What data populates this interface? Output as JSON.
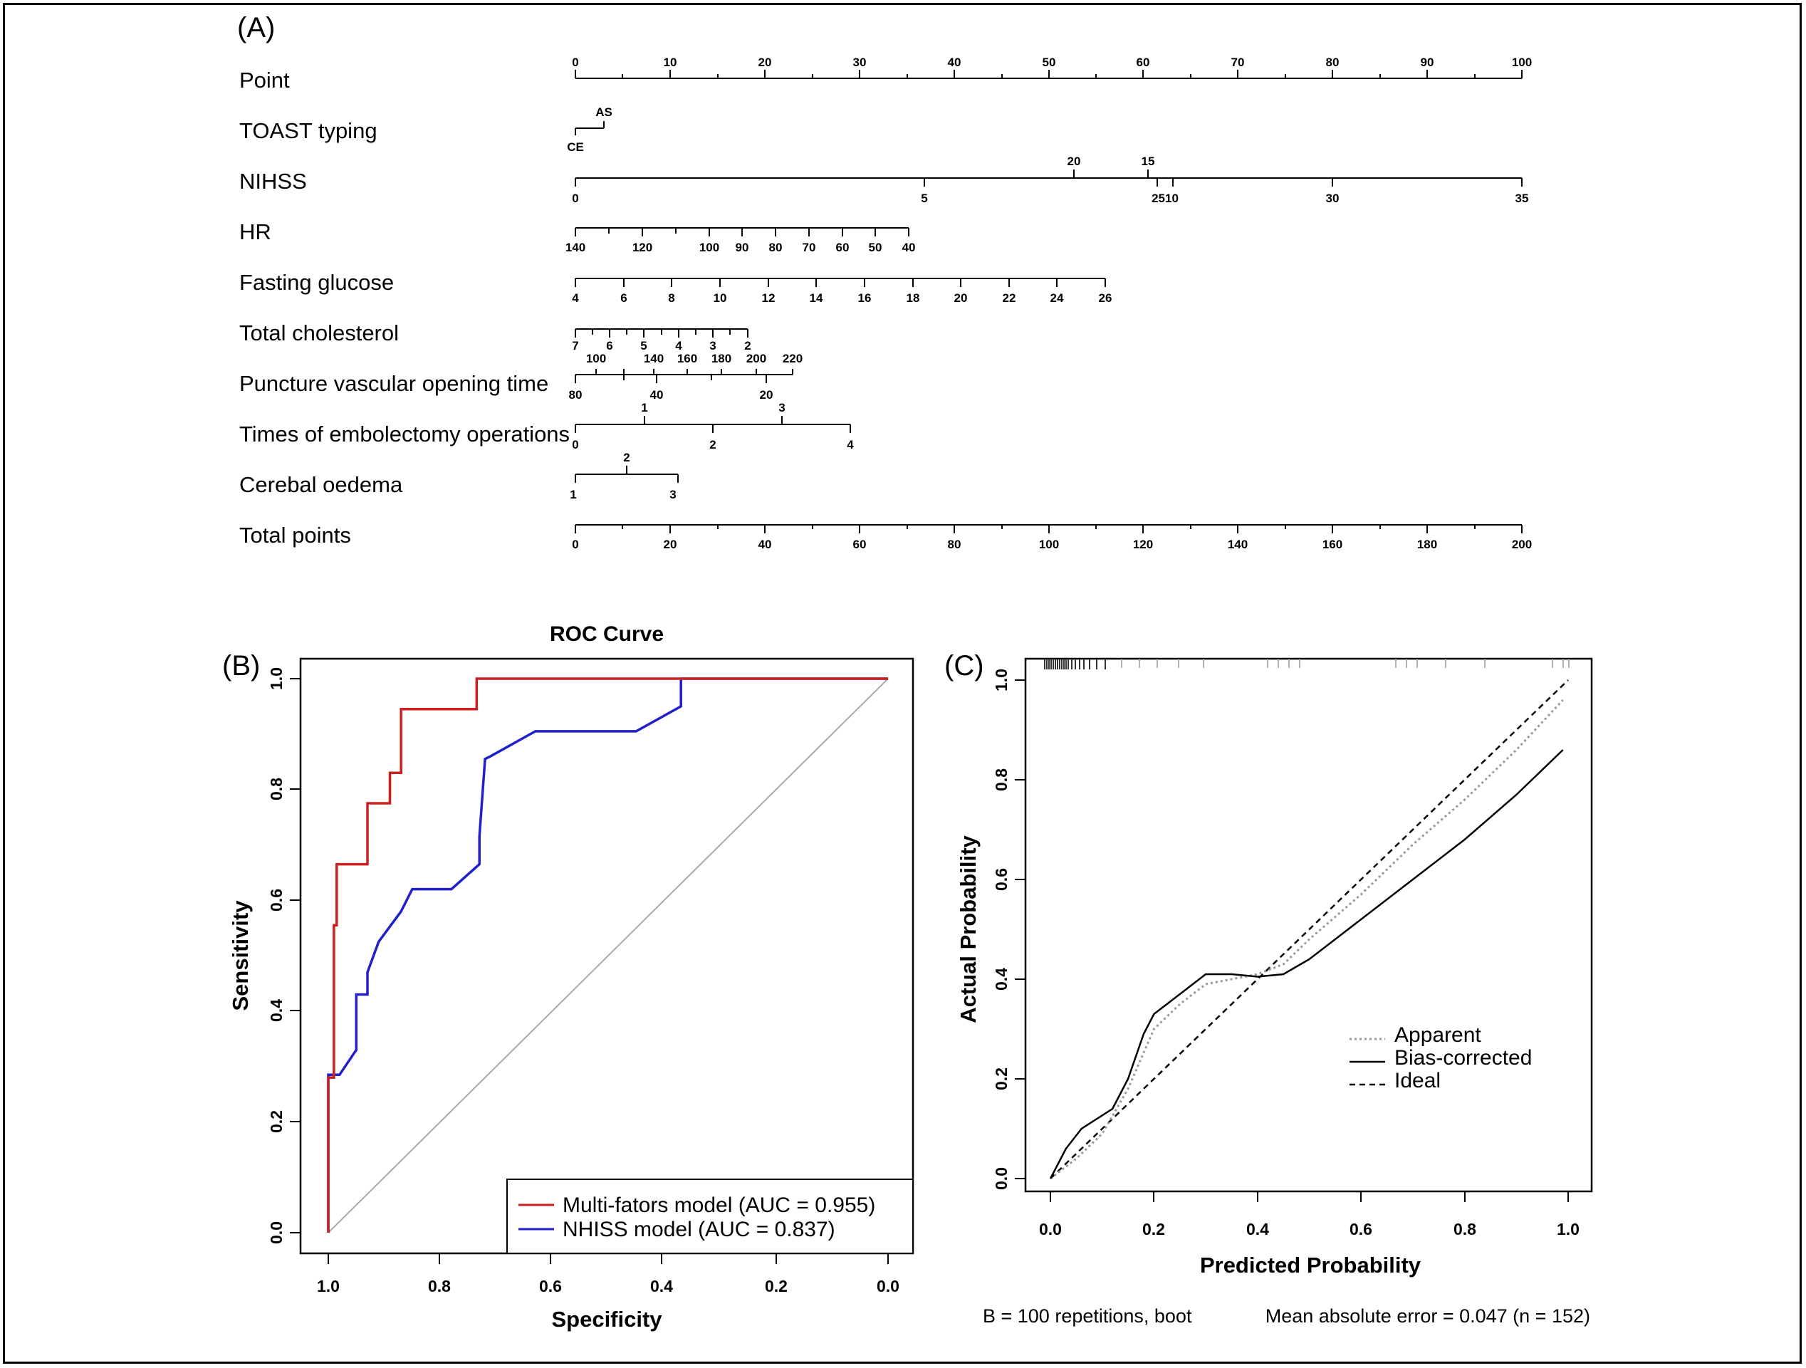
{
  "panel_a": {
    "letter": "(A)",
    "rows": [
      {
        "label": "Point",
        "ticks_above": [
          "0",
          "10",
          "20",
          "30",
          "40",
          "50",
          "60",
          "70",
          "80",
          "90",
          "100"
        ]
      },
      {
        "label": "TOAST typing",
        "ticks": [
          "AS",
          "CE"
        ]
      },
      {
        "label": "NIHSS",
        "ticks": [
          "20",
          "15",
          "0",
          "5",
          "2510",
          "30",
          "35"
        ]
      },
      {
        "label": "HR",
        "ticks": [
          "140",
          "120",
          "100",
          "90",
          "80",
          "70",
          "60",
          "50",
          "40"
        ]
      },
      {
        "label": "Fasting glucose",
        "ticks": [
          "4",
          "6",
          "8",
          "10",
          "12",
          "14",
          "16",
          "18",
          "20",
          "22",
          "24",
          "26"
        ]
      },
      {
        "label": "Total cholesterol",
        "ticks": [
          "7",
          "6",
          "5",
          "4",
          "3",
          "2"
        ]
      },
      {
        "label": "Puncture vascular opening time",
        "ticks": [
          "100",
          "140",
          "160",
          "180",
          "200",
          "220",
          "80",
          "40",
          "20"
        ]
      },
      {
        "label": "Times of embolectomy operations",
        "ticks": [
          "1",
          "3",
          "0",
          "2",
          "4"
        ]
      },
      {
        "label": "Cerebal oedema",
        "ticks": [
          "2",
          "1",
          "3"
        ]
      },
      {
        "label": "Total points",
        "ticks": [
          "0",
          "20",
          "40",
          "60",
          "80",
          "100",
          "120",
          "140",
          "160",
          "180",
          "200"
        ]
      }
    ]
  },
  "panel_b": {
    "letter": "(B)",
    "title": "ROC Curve",
    "xlabel": "Specificity",
    "ylabel": "Sensitivity",
    "xticks": [
      "1.0",
      "0.8",
      "0.6",
      "0.4",
      "0.2",
      "0.0"
    ],
    "yticks": [
      "0.0",
      "0.2",
      "0.4",
      "0.6",
      "0.8",
      "1.0"
    ],
    "legend": [
      "Multi-fators model (AUC = 0.955)",
      "NHISS model (AUC = 0.837)"
    ],
    "colors": {
      "multi": "#cc1f1f",
      "nhiss": "#1f1fcc",
      "diagonal": "#aaaaaa"
    }
  },
  "panel_c": {
    "letter": "(C)",
    "xlabel": "Predicted Probability",
    "ylabel": "Actual Probability",
    "xticks": [
      "0.0",
      "0.2",
      "0.4",
      "0.6",
      "0.8",
      "1.0"
    ],
    "yticks": [
      "0.0",
      "0.2",
      "0.4",
      "0.6",
      "0.8",
      "1.0"
    ],
    "legend": [
      "Apparent",
      "Bias-corrected",
      "Ideal"
    ],
    "footer_left": "B = 100 repetitions, boot",
    "footer_right": "Mean absolute error = 0.047 (n = 152)"
  },
  "chart_data": [
    {
      "type": "line",
      "panel": "B",
      "xlim": [
        1.0,
        0.0
      ],
      "ylim": [
        0.0,
        1.0
      ],
      "series": [
        {
          "name": "Multi-fators model (AUC = 0.955)",
          "x": [
            1.0,
            1.0,
            0.99,
            0.99,
            0.985,
            0.985,
            0.985,
            0.93,
            0.93,
            0.89,
            0.89,
            0.87,
            0.87,
            0.735,
            0.735,
            0.0
          ],
          "y": [
            0.0,
            0.28,
            0.28,
            0.555,
            0.555,
            0.555,
            0.665,
            0.665,
            0.775,
            0.775,
            0.83,
            0.83,
            0.945,
            0.945,
            1.0,
            1.0
          ]
        },
        {
          "name": "NHISS model (AUC = 0.837)",
          "x": [
            1.0,
            1.0,
            0.98,
            0.95,
            0.95,
            0.93,
            0.93,
            0.91,
            0.87,
            0.85,
            0.78,
            0.73,
            0.73,
            0.72,
            0.71,
            0.63,
            0.45,
            0.37,
            0.37,
            0.0
          ],
          "y": [
            0.0,
            0.285,
            0.285,
            0.33,
            0.43,
            0.43,
            0.47,
            0.525,
            0.58,
            0.62,
            0.62,
            0.665,
            0.715,
            0.855,
            0.86,
            0.905,
            0.905,
            0.95,
            1.0,
            1.0
          ]
        },
        {
          "x": [
            1.0,
            0.0
          ],
          "y": [
            0.0,
            1.0
          ]
        }
      ]
    },
    {
      "type": "line",
      "panel": "C",
      "xlim": [
        0.0,
        1.0
      ],
      "ylim": [
        0.0,
        1.0
      ],
      "series": [
        {
          "name": "Apparent",
          "x": [
            0.0,
            0.05,
            0.1,
            0.15,
            0.2,
            0.25,
            0.3,
            0.35,
            0.4,
            0.45,
            0.5,
            0.6,
            0.7,
            0.8,
            0.9,
            0.99
          ],
          "y": [
            0.0,
            0.04,
            0.09,
            0.18,
            0.3,
            0.35,
            0.39,
            0.4,
            0.41,
            0.43,
            0.48,
            0.57,
            0.67,
            0.76,
            0.86,
            0.96
          ]
        },
        {
          "name": "Bias-corrected",
          "x": [
            0.0,
            0.03,
            0.06,
            0.09,
            0.12,
            0.15,
            0.18,
            0.2,
            0.25,
            0.3,
            0.35,
            0.4,
            0.45,
            0.5,
            0.6,
            0.7,
            0.8,
            0.9,
            0.99
          ],
          "y": [
            0.0,
            0.06,
            0.1,
            0.12,
            0.14,
            0.2,
            0.29,
            0.33,
            0.37,
            0.41,
            0.41,
            0.405,
            0.41,
            0.44,
            0.52,
            0.6,
            0.68,
            0.77,
            0.86
          ]
        },
        {
          "name": "Ideal",
          "x": [
            0.0,
            1.0
          ],
          "y": [
            0.0,
            1.0
          ]
        }
      ]
    }
  ]
}
